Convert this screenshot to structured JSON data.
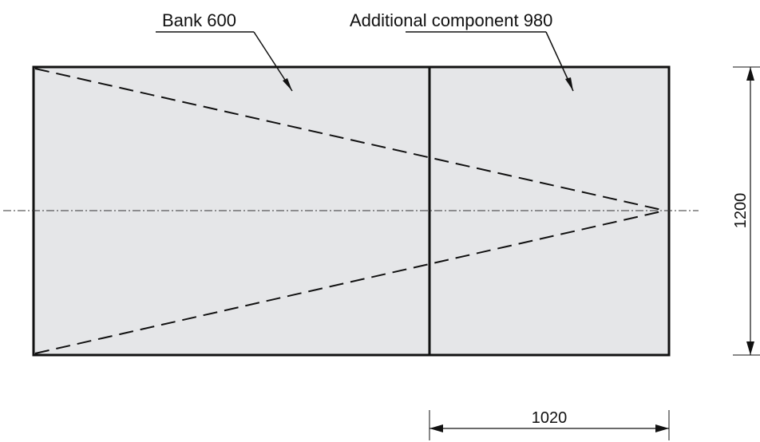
{
  "labels": {
    "bank": "Bank 600",
    "additional_component": "Additional component 980"
  },
  "dimensions": {
    "length": "1020",
    "height": "1200"
  },
  "colors": {
    "panel_fill": "#e5e6e8",
    "line": "#111111",
    "background": "#ffffff"
  }
}
